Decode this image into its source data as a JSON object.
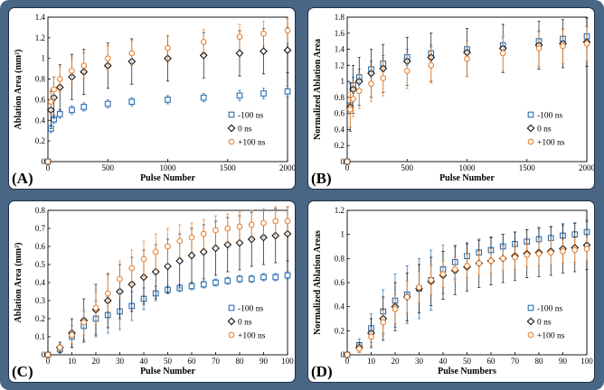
{
  "colors": {
    "m100": "#2a6db0",
    "zero": "#111111",
    "p100": "#e8822e",
    "frame": "#4a6685"
  },
  "chart_data": [
    {
      "type": "scatter",
      "panel_label": "(A)",
      "xlabel": "Pulse Number",
      "ylabel": "Ablation Area (mm²)",
      "xlim": [
        0,
        2000
      ],
      "ylim": [
        0,
        1.4
      ],
      "xticks": [
        0,
        500,
        1000,
        1500,
        2000
      ],
      "yticks": [
        0,
        0.2,
        0.4,
        0.6,
        0.8,
        1,
        1.2,
        1.4
      ],
      "legend": [
        "-100 ns",
        "0 ns",
        "+100 ns"
      ],
      "series": [
        {
          "name": "-100 ns",
          "marker": "square",
          "x": [
            0,
            25,
            50,
            100,
            200,
            300,
            500,
            700,
            1000,
            1300,
            1600,
            1800,
            2000
          ],
          "y": [
            0,
            0.32,
            0.41,
            0.46,
            0.5,
            0.53,
            0.56,
            0.58,
            0.6,
            0.62,
            0.64,
            0.66,
            0.68
          ],
          "err": [
            0,
            0.04,
            0.04,
            0.04,
            0.04,
            0.04,
            0.04,
            0.04,
            0.04,
            0.04,
            0.05,
            0.05,
            0.05
          ]
        },
        {
          "name": "0 ns",
          "marker": "diamond",
          "x": [
            0,
            25,
            50,
            100,
            200,
            300,
            500,
            700,
            1000,
            1300,
            1600,
            1800,
            2000
          ],
          "y": [
            0,
            0.5,
            0.62,
            0.72,
            0.82,
            0.87,
            0.93,
            0.97,
            1.0,
            1.03,
            1.05,
            1.07,
            1.08
          ],
          "err": [
            0,
            0.18,
            0.2,
            0.22,
            0.22,
            0.22,
            0.22,
            0.22,
            0.22,
            0.22,
            0.22,
            0.22,
            0.22
          ]
        },
        {
          "name": "+100 ns",
          "marker": "circle",
          "x": [
            0,
            25,
            50,
            100,
            200,
            300,
            500,
            700,
            1000,
            1300,
            1600,
            1800,
            2000
          ],
          "y": [
            0,
            0.58,
            0.7,
            0.8,
            0.88,
            0.93,
            1.0,
            1.05,
            1.1,
            1.16,
            1.21,
            1.24,
            1.27
          ],
          "err": [
            0,
            0.12,
            0.12,
            0.12,
            0.12,
            0.12,
            0.12,
            0.12,
            0.12,
            0.12,
            0.12,
            0.12,
            0.12
          ]
        }
      ]
    },
    {
      "type": "scatter",
      "panel_label": "(B)",
      "xlabel": "Pulse Number",
      "ylabel": "Normalized Ablation Area",
      "xlim": [
        0,
        2000
      ],
      "ylim": [
        0,
        1.8
      ],
      "xticks": [
        0,
        500,
        1000,
        1500,
        2000
      ],
      "yticks": [
        0,
        0.2,
        0.4,
        0.6,
        0.8,
        1,
        1.2,
        1.4,
        1.6,
        1.8
      ],
      "legend": [
        "-100 ns",
        "0 ns",
        "+100 ns"
      ],
      "series": [
        {
          "name": "-100 ns",
          "marker": "square",
          "x": [
            0,
            25,
            50,
            100,
            200,
            300,
            500,
            700,
            1000,
            1300,
            1600,
            1800,
            2000
          ],
          "y": [
            0,
            0.7,
            0.95,
            1.05,
            1.15,
            1.22,
            1.3,
            1.35,
            1.4,
            1.45,
            1.5,
            1.53,
            1.56
          ],
          "err": [
            0,
            0.1,
            0.1,
            0.1,
            0.1,
            0.1,
            0.1,
            0.1,
            0.1,
            0.1,
            0.12,
            0.12,
            0.12
          ]
        },
        {
          "name": "0 ns",
          "marker": "diamond",
          "x": [
            0,
            25,
            50,
            100,
            200,
            300,
            500,
            700,
            1000,
            1300,
            1600,
            1800,
            2000
          ],
          "y": [
            0,
            0.68,
            0.9,
            1.0,
            1.1,
            1.16,
            1.25,
            1.3,
            1.36,
            1.41,
            1.45,
            1.47,
            1.49
          ],
          "err": [
            0,
            0.3,
            0.3,
            0.3,
            0.3,
            0.3,
            0.3,
            0.3,
            0.3,
            0.3,
            0.3,
            0.3,
            0.3
          ]
        },
        {
          "name": "+100 ns",
          "marker": "circle",
          "x": [
            0,
            25,
            50,
            100,
            200,
            300,
            500,
            700,
            1000,
            1300,
            1600,
            1800,
            2000
          ],
          "y": [
            0,
            0.65,
            0.78,
            0.88,
            0.97,
            1.04,
            1.13,
            1.2,
            1.28,
            1.35,
            1.41,
            1.44,
            1.47
          ],
          "err": [
            0,
            0.22,
            0.22,
            0.22,
            0.22,
            0.22,
            0.22,
            0.22,
            0.22,
            0.22,
            0.22,
            0.22,
            0.22
          ]
        }
      ]
    },
    {
      "type": "scatter",
      "panel_label": "(C)",
      "xlabel": "Pulse Number",
      "ylabel": "Ablation Area (mm²)",
      "xlim": [
        0,
        100
      ],
      "ylim": [
        0,
        0.8
      ],
      "xticks": [
        0,
        10,
        20,
        30,
        40,
        50,
        60,
        70,
        80,
        90,
        100
      ],
      "yticks": [
        0,
        0.1,
        0.2,
        0.3,
        0.4,
        0.5,
        0.6,
        0.7,
        0.8
      ],
      "legend": [
        "-100 ns",
        "0 ns",
        "+100 ns"
      ],
      "series": [
        {
          "name": "-100 ns",
          "marker": "square",
          "x": [
            0,
            5,
            10,
            15,
            20,
            25,
            30,
            35,
            40,
            45,
            50,
            55,
            60,
            65,
            70,
            75,
            80,
            85,
            90,
            95,
            100
          ],
          "y": [
            0,
            0.03,
            0.1,
            0.16,
            0.2,
            0.22,
            0.24,
            0.27,
            0.31,
            0.34,
            0.36,
            0.37,
            0.38,
            0.39,
            0.4,
            0.41,
            0.42,
            0.42,
            0.43,
            0.43,
            0.44
          ],
          "err": [
            0,
            0.02,
            0.06,
            0.08,
            0.1,
            0.1,
            0.1,
            0.08,
            0.06,
            0.04,
            0.02,
            0.02,
            0.02,
            0.02,
            0.02,
            0.02,
            0.02,
            0.02,
            0.02,
            0.02,
            0.02
          ]
        },
        {
          "name": "0 ns",
          "marker": "diamond",
          "x": [
            0,
            5,
            10,
            15,
            20,
            25,
            30,
            35,
            40,
            45,
            50,
            55,
            60,
            65,
            70,
            75,
            80,
            85,
            90,
            95,
            100
          ],
          "y": [
            0,
            0.04,
            0.12,
            0.19,
            0.25,
            0.3,
            0.35,
            0.39,
            0.43,
            0.46,
            0.49,
            0.52,
            0.55,
            0.57,
            0.59,
            0.61,
            0.62,
            0.64,
            0.65,
            0.66,
            0.67
          ],
          "err": [
            0,
            0.03,
            0.08,
            0.12,
            0.14,
            0.15,
            0.15,
            0.15,
            0.15,
            0.15,
            0.15,
            0.15,
            0.15,
            0.15,
            0.15,
            0.15,
            0.15,
            0.15,
            0.15,
            0.15,
            0.15
          ]
        },
        {
          "name": "+100 ns",
          "marker": "circle",
          "x": [
            0,
            5,
            10,
            15,
            20,
            25,
            30,
            35,
            40,
            45,
            50,
            55,
            60,
            65,
            70,
            75,
            80,
            85,
            90,
            95,
            100
          ],
          "y": [
            0,
            0.04,
            0.11,
            0.18,
            0.26,
            0.34,
            0.42,
            0.48,
            0.53,
            0.57,
            0.6,
            0.63,
            0.65,
            0.67,
            0.69,
            0.7,
            0.71,
            0.72,
            0.73,
            0.74,
            0.74
          ],
          "err": [
            0,
            0.02,
            0.05,
            0.07,
            0.09,
            0.1,
            0.1,
            0.1,
            0.1,
            0.1,
            0.1,
            0.09,
            0.08,
            0.08,
            0.08,
            0.08,
            0.08,
            0.08,
            0.08,
            0.08,
            0.08
          ]
        }
      ]
    },
    {
      "type": "scatter",
      "panel_label": "(D)",
      "xlabel": "Pulse Numbers",
      "ylabel": "Normalized Ablation Areas",
      "xlim": [
        0,
        100
      ],
      "ylim": [
        0,
        1.2
      ],
      "xticks": [
        0,
        10,
        20,
        30,
        40,
        50,
        60,
        70,
        80,
        90,
        100
      ],
      "yticks": [
        0,
        0.2,
        0.4,
        0.6,
        0.8,
        1,
        1.2
      ],
      "legend": [
        "-100 ns",
        "0 ns",
        "+100 ns"
      ],
      "series": [
        {
          "name": "-100 ns",
          "marker": "square",
          "x": [
            0,
            5,
            10,
            15,
            20,
            25,
            30,
            35,
            40,
            45,
            50,
            55,
            60,
            65,
            70,
            75,
            80,
            85,
            90,
            95,
            100
          ],
          "y": [
            0,
            0.08,
            0.22,
            0.36,
            0.45,
            0.5,
            0.55,
            0.62,
            0.71,
            0.77,
            0.82,
            0.85,
            0.87,
            0.9,
            0.92,
            0.94,
            0.96,
            0.97,
            0.99,
            1.0,
            1.02
          ],
          "err": [
            0,
            0.05,
            0.12,
            0.18,
            0.22,
            0.24,
            0.25,
            0.25,
            0.2,
            0.14,
            0.1,
            0.1,
            0.1,
            0.1,
            0.1,
            0.1,
            0.1,
            0.1,
            0.1,
            0.1,
            0.1
          ]
        },
        {
          "name": "0 ns",
          "marker": "diamond",
          "x": [
            0,
            5,
            10,
            15,
            20,
            25,
            30,
            35,
            40,
            45,
            50,
            55,
            60,
            65,
            70,
            75,
            80,
            85,
            90,
            95,
            100
          ],
          "y": [
            0,
            0.06,
            0.18,
            0.3,
            0.4,
            0.48,
            0.55,
            0.61,
            0.66,
            0.7,
            0.73,
            0.76,
            0.78,
            0.8,
            0.82,
            0.84,
            0.85,
            0.86,
            0.88,
            0.89,
            0.91
          ],
          "err": [
            0,
            0.04,
            0.12,
            0.18,
            0.2,
            0.2,
            0.2,
            0.2,
            0.2,
            0.2,
            0.2,
            0.2,
            0.2,
            0.2,
            0.2,
            0.2,
            0.2,
            0.2,
            0.2,
            0.2,
            0.2
          ]
        },
        {
          "name": "+100 ns",
          "marker": "circle",
          "x": [
            0,
            5,
            10,
            15,
            20,
            25,
            30,
            35,
            40,
            45,
            50,
            55,
            60,
            65,
            70,
            75,
            80,
            85,
            90,
            95,
            100
          ],
          "y": [
            0,
            0.05,
            0.15,
            0.27,
            0.38,
            0.48,
            0.56,
            0.62,
            0.67,
            0.71,
            0.74,
            0.76,
            0.78,
            0.8,
            0.81,
            0.83,
            0.84,
            0.85,
            0.86,
            0.87,
            0.88
          ],
          "err": [
            0,
            0.03,
            0.07,
            0.1,
            0.12,
            0.13,
            0.13,
            0.12,
            0.11,
            0.1,
            0.1,
            0.1,
            0.1,
            0.1,
            0.1,
            0.1,
            0.1,
            0.1,
            0.1,
            0.1,
            0.1
          ]
        }
      ]
    }
  ]
}
